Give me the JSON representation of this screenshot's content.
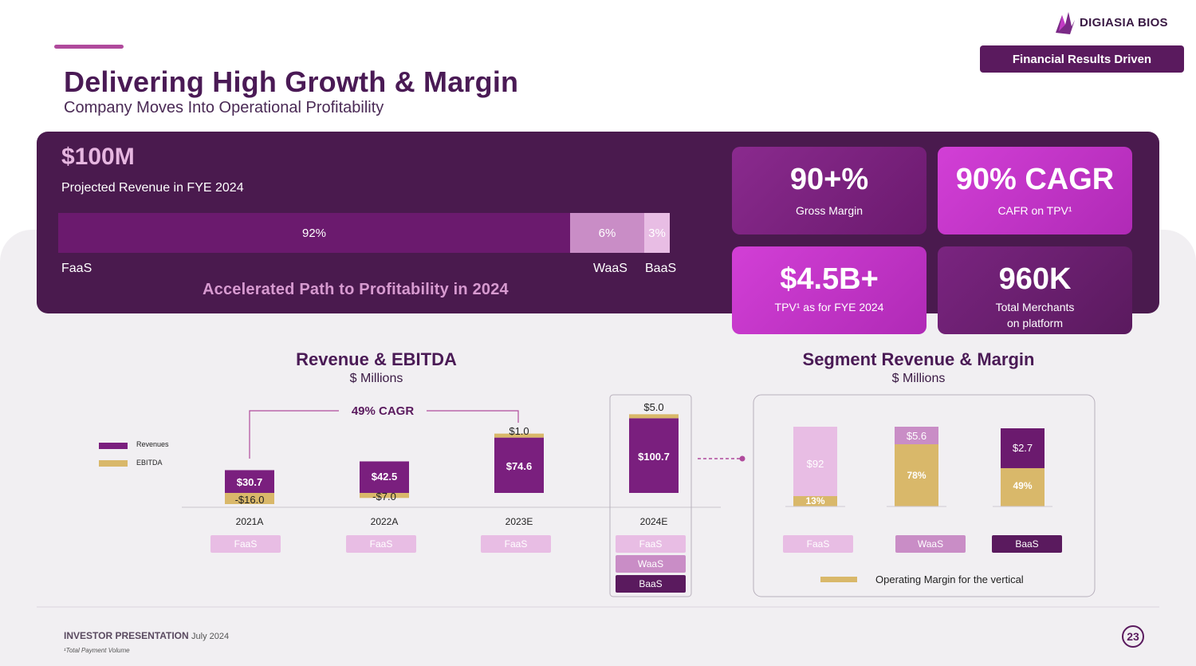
{
  "header": {
    "title": "Delivering High Growth & Margin",
    "subtitle": "Company Moves Into Operational Profitability",
    "logo_text": "DIGIASIA BIOS",
    "badge": "Financial Results Driven"
  },
  "hero": {
    "big": "$100M",
    "sub": "Projected Revenue in FYE 2024",
    "segments": [
      {
        "name": "FaaS",
        "pct_label": "92%",
        "share": 92,
        "color": "#6b1a6e"
      },
      {
        "name": "WaaS",
        "pct_label": "6%",
        "share": 6,
        "color": "#c98dc6"
      },
      {
        "name": "BaaS",
        "pct_label": "3%",
        "share": 3,
        "color": "#e8bde4"
      }
    ],
    "tagline": "Accelerated Path to Profitability in 2024"
  },
  "kpis": [
    {
      "value": "90+%",
      "label": "Gross Margin"
    },
    {
      "value": "90% CAGR",
      "label": "CAFR on TPV¹"
    },
    {
      "value": "$4.5B+",
      "label": "TPV¹ as for FYE 2024"
    },
    {
      "value": "960K",
      "label_line1": "Total Merchants",
      "label_line2": "on platform"
    }
  ],
  "revenue_chart": {
    "title": "Revenue & EBITDA",
    "unit": "$ Millions",
    "cagr": "49% CAGR",
    "legend": {
      "revenues": "Revenues",
      "ebitda": "EBITDA"
    },
    "years": [
      "2021A",
      "2022A",
      "2023E",
      "2024E"
    ],
    "revenue_labels": [
      "$30.7",
      "$42.5",
      "$74.6",
      "$100.7"
    ],
    "ebitda_labels": [
      "-$16.0",
      "-$7.0",
      "$1.0",
      "$5.0"
    ],
    "segment_chips": [
      [
        "FaaS"
      ],
      [
        "FaaS"
      ],
      [
        "FaaS"
      ],
      [
        "FaaS",
        "WaaS",
        "BaaS"
      ]
    ]
  },
  "segment_chart": {
    "title": "Segment Revenue & Margin",
    "unit": "$ Millions",
    "segments": [
      {
        "name": "FaaS",
        "value_label": "$92",
        "margin_label": "13%"
      },
      {
        "name": "WaaS",
        "value_label": "$5.6",
        "margin_label": "78%"
      },
      {
        "name": "BaaS",
        "value_label": "$2.7",
        "margin_label": "49%"
      }
    ],
    "legend": "Operating  Margin for the vertical"
  },
  "chart_data": [
    {
      "type": "bar",
      "title": "Revenue & EBITDA",
      "ylabel": "$ Millions",
      "categories": [
        "2021A",
        "2022A",
        "2023E",
        "2024E"
      ],
      "series": [
        {
          "name": "Revenues",
          "values": [
            30.7,
            42.5,
            74.6,
            100.7
          ]
        },
        {
          "name": "EBITDA",
          "values": [
            -16.0,
            -7.0,
            1.0,
            5.0
          ]
        }
      ],
      "annotations": [
        "49% CAGR"
      ]
    },
    {
      "type": "bar",
      "title": "Segment Revenue & Margin",
      "ylabel": "$ Millions",
      "categories": [
        "FaaS",
        "WaaS",
        "BaaS"
      ],
      "series": [
        {
          "name": "Revenue",
          "values": [
            92,
            5.6,
            2.7
          ]
        },
        {
          "name": "Operating Margin (%)",
          "values": [
            13,
            78,
            49
          ]
        }
      ]
    }
  ],
  "footer": {
    "presentation": "INVESTOR PRESENTATION",
    "date": "July 2024",
    "footnote": "¹Total Payment Volume",
    "page": "23"
  },
  "colors": {
    "brand": "#5a1a5e",
    "accent": "#c33bc5",
    "gold": "#d9b86a"
  }
}
